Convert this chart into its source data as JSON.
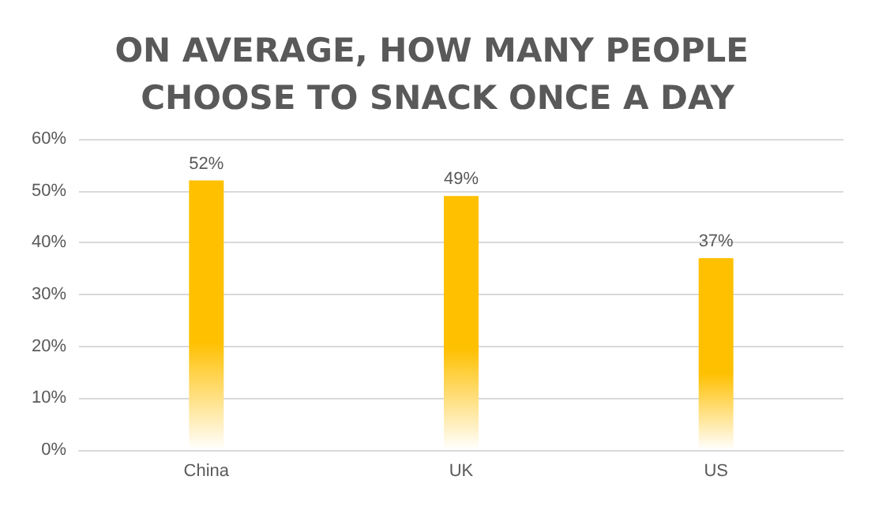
{
  "chart_data": {
    "type": "bar",
    "title": "ON AVERAGE, HOW MANY PEOPLE CHOOSE TO SNACK ONCE A DAY",
    "categories": [
      "China",
      "UK",
      "US"
    ],
    "values": [
      52,
      49,
      37
    ],
    "value_labels": [
      "52%",
      "49%",
      "37%"
    ],
    "color": "#ffc000",
    "ylim": [
      0,
      60
    ],
    "yticks": [
      {
        "value": 0,
        "label": "0%"
      },
      {
        "value": 10,
        "label": "10%"
      },
      {
        "value": 20,
        "label": "20%"
      },
      {
        "value": 30,
        "label": "30%"
      },
      {
        "value": 40,
        "label": "40%"
      },
      {
        "value": 50,
        "label": "50%"
      },
      {
        "value": 60,
        "label": "60%"
      }
    ],
    "grid": true
  }
}
